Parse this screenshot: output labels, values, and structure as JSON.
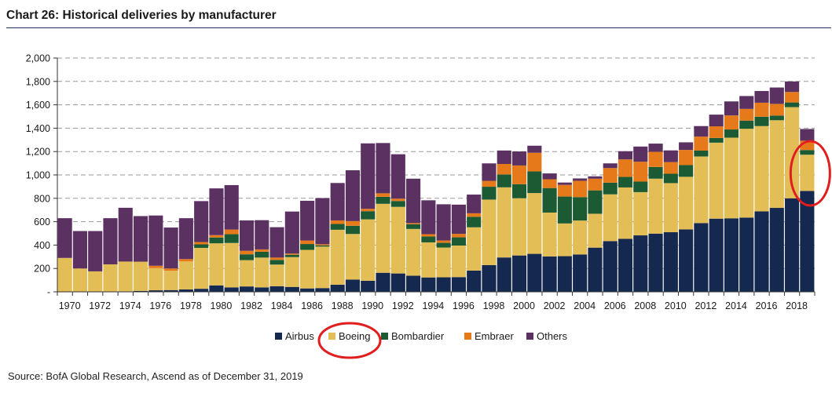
{
  "header": {
    "title": "Chart 26: Historical deliveries by manufacturer"
  },
  "source": "Source: BofA Global Research, Ascend as of December 31, 2019",
  "colors": {
    "Airbus": "#15284f",
    "Boeing": "#e3bd55",
    "Bombardier": "#1b5a33",
    "Embraer": "#e67a1a",
    "Others": "#5b3162",
    "grid": "#9a9a9a",
    "annotation": "#e01e1e"
  },
  "annotations": [
    {
      "target": "bar-2019",
      "shape": "ellipse",
      "color": "#e01e1e"
    },
    {
      "target": "legend-boeing",
      "shape": "ellipse",
      "color": "#e01e1e"
    }
  ],
  "chart_data": {
    "type": "bar",
    "stacked": true,
    "title": "Chart 26: Historical deliveries by manufacturer",
    "xlabel": "",
    "ylabel": "",
    "ylim": [
      0,
      2000
    ],
    "yticks": [
      0,
      200,
      400,
      600,
      800,
      1000,
      1200,
      1400,
      1600,
      1800,
      2000
    ],
    "ytick_labels": [
      "-",
      "200",
      "400",
      "600",
      "800",
      "1,000",
      "1,200",
      "1,400",
      "1,600",
      "1,800",
      "2,000"
    ],
    "grid": true,
    "legend_position": "bottom",
    "categories": [
      "1970",
      "1971",
      "1972",
      "1973",
      "1974",
      "1975",
      "1976",
      "1977",
      "1978",
      "1979",
      "1980",
      "1981",
      "1982",
      "1983",
      "1984",
      "1985",
      "1986",
      "1987",
      "1988",
      "1989",
      "1990",
      "1991",
      "1992",
      "1993",
      "1994",
      "1995",
      "1996",
      "1997",
      "1998",
      "1999",
      "2000",
      "2001",
      "2002",
      "2003",
      "2004",
      "2005",
      "2006",
      "2007",
      "2008",
      "2009",
      "2010",
      "2011",
      "2012",
      "2013",
      "2014",
      "2015",
      "2016",
      "2017",
      "2018",
      "2019"
    ],
    "xtick_labels": [
      "1970",
      "",
      "1972",
      "",
      "1974",
      "",
      "1976",
      "",
      "1978",
      "",
      "1980",
      "",
      "1982",
      "",
      "1984",
      "",
      "1986",
      "",
      "1988",
      "",
      "1990",
      "",
      "1992",
      "",
      "1994",
      "",
      "1996",
      "",
      "1998",
      "",
      "2000",
      "",
      "2002",
      "",
      "2004",
      "",
      "2006",
      "",
      "2008",
      "",
      "2010",
      "",
      "2012",
      "",
      "2014",
      "",
      "2016",
      "",
      "2018",
      ""
    ],
    "series": [
      {
        "name": "Airbus",
        "values": [
          0,
          0,
          0,
          0,
          4,
          8,
          13,
          15,
          20,
          26,
          55,
          38,
          46,
          38,
          48,
          42,
          29,
          32,
          61,
          105,
          95,
          163,
          157,
          138,
          123,
          124,
          126,
          182,
          229,
          294,
          311,
          325,
          303,
          305,
          320,
          378,
          434,
          453,
          483,
          498,
          510,
          534,
          588,
          626,
          629,
          635,
          688,
          718,
          800,
          863
        ]
      },
      {
        "name": "Boeing",
        "values": [
          290,
          200,
          175,
          235,
          255,
          250,
          190,
          165,
          240,
          350,
          360,
          380,
          225,
          255,
          185,
          255,
          330,
          355,
          470,
          390,
          525,
          590,
          570,
          400,
          300,
          255,
          270,
          370,
          560,
          600,
          490,
          520,
          375,
          280,
          290,
          290,
          400,
          440,
          370,
          470,
          420,
          450,
          570,
          650,
          690,
          760,
          730,
          750,
          780,
          310
        ]
      },
      {
        "name": "Bombardier",
        "values": [
          0,
          0,
          0,
          0,
          0,
          0,
          0,
          0,
          0,
          30,
          50,
          75,
          50,
          50,
          40,
          20,
          50,
          10,
          50,
          70,
          70,
          60,
          50,
          40,
          50,
          40,
          70,
          90,
          110,
          110,
          120,
          185,
          210,
          230,
          200,
          200,
          100,
          90,
          90,
          100,
          80,
          100,
          50,
          40,
          70,
          70,
          80,
          40,
          40,
          40
        ]
      },
      {
        "name": "Embraer",
        "values": [
          0,
          0,
          0,
          0,
          0,
          0,
          20,
          20,
          20,
          20,
          20,
          40,
          30,
          20,
          20,
          10,
          30,
          10,
          30,
          40,
          20,
          30,
          20,
          10,
          20,
          20,
          30,
          30,
          50,
          90,
          160,
          160,
          75,
          100,
          140,
          100,
          125,
          150,
          170,
          130,
          100,
          130,
          120,
          100,
          120,
          100,
          120,
          100,
          90,
          80
        ]
      },
      {
        "name": "Others",
        "values": [
          340,
          320,
          345,
          395,
          460,
          390,
          430,
          350,
          350,
          350,
          400,
          380,
          260,
          250,
          260,
          360,
          340,
          395,
          320,
          435,
          560,
          430,
          380,
          380,
          290,
          310,
          250,
          160,
          150,
          115,
          120,
          60,
          50,
          20,
          20,
          20,
          40,
          70,
          130,
          70,
          100,
          65,
          90,
          100,
          120,
          110,
          100,
          140,
          90,
          100
        ]
      }
    ]
  }
}
